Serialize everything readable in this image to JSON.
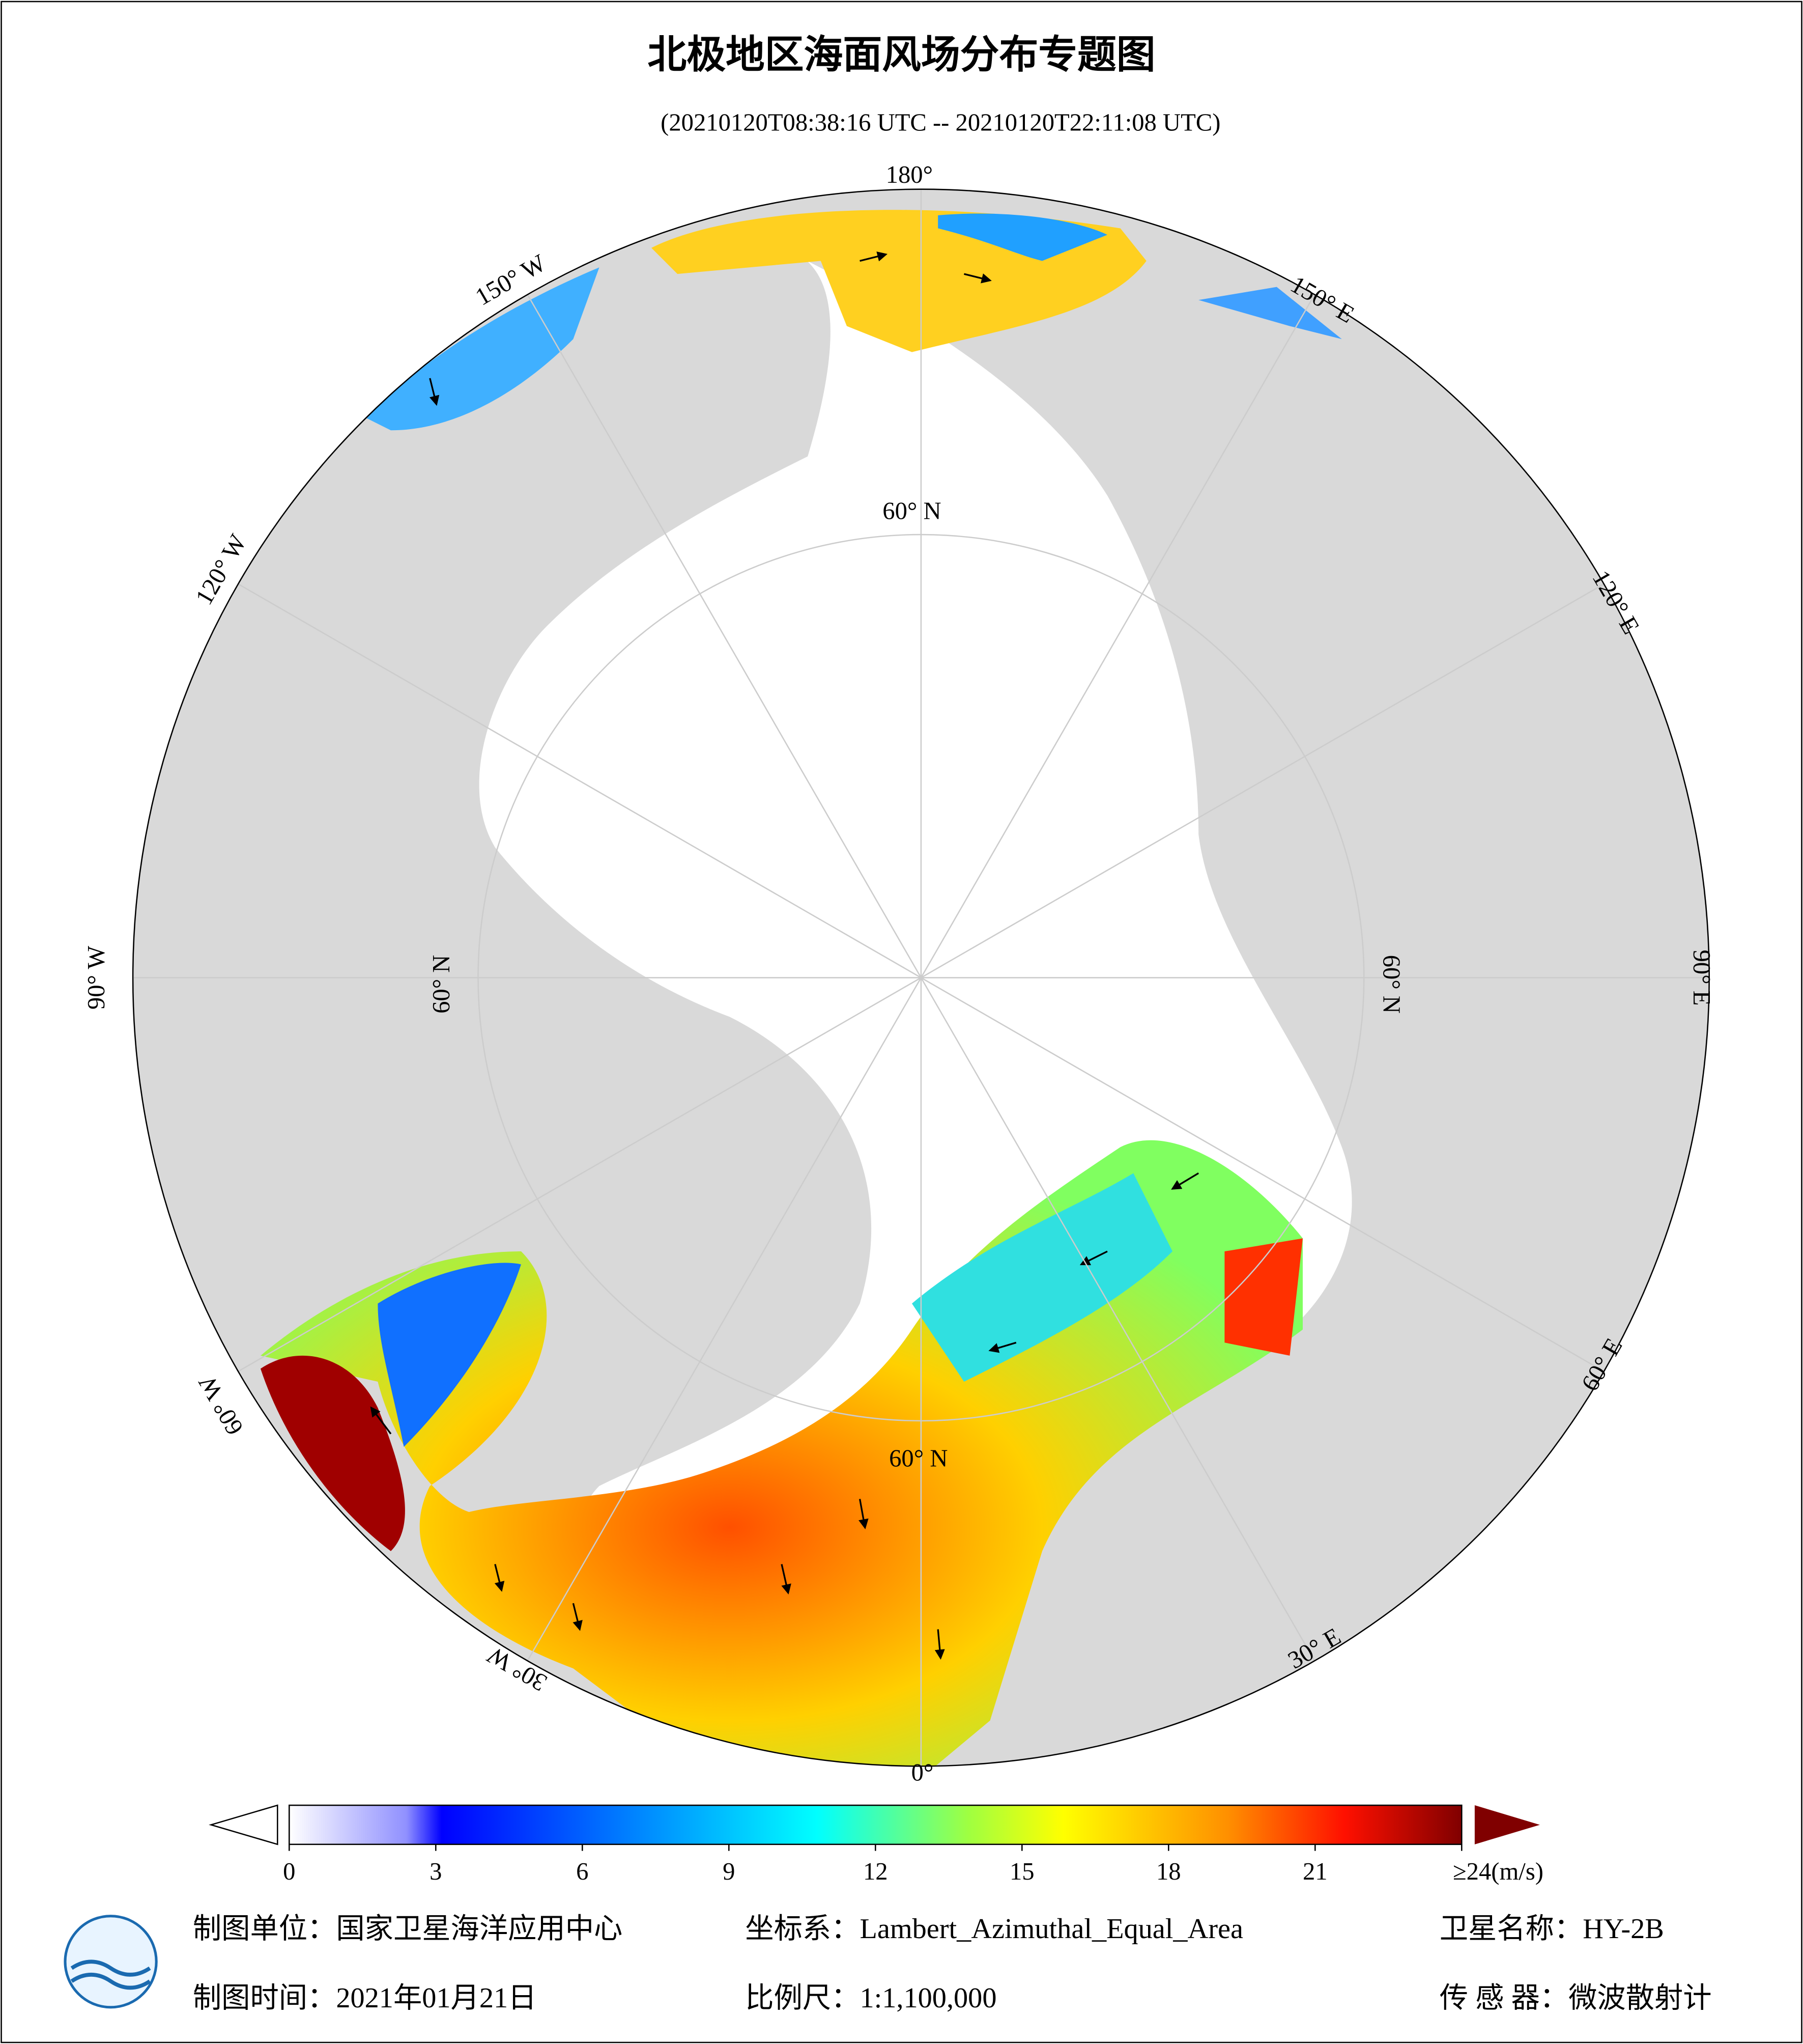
{
  "header": {
    "title": "北极地区海面风场分布专题图",
    "subtitle": "(20210120T08:38:16 UTC -- 20210120T22:11:08 UTC)"
  },
  "map": {
    "lon_labels": [
      "180°",
      "150° E",
      "120° E",
      "90° E",
      "60° E",
      "30° E",
      "0°",
      "30° W",
      "60° W",
      "90° W",
      "120° W",
      "150° W"
    ],
    "lat_labels": [
      "60° N",
      "60° N",
      "60° N",
      "60° N"
    ]
  },
  "colorbar": {
    "lim": [
      0,
      24
    ],
    "ticks": [
      0,
      3,
      6,
      9,
      12,
      15,
      18,
      21,
      {
        "value": 24,
        "label": "≥24(m/s)"
      }
    ]
  },
  "footer": {
    "unit": "制图单位：国家卫星海洋应用中心",
    "crs": "坐标系：Lambert_Azimuthal_Equal_Area",
    "satellite": "卫星名称：HY-2B",
    "date": "制图时间：2021年01月21日",
    "scale": "比例尺：1:1,100,000",
    "sensor": "传 感 器：微波散射计"
  }
}
